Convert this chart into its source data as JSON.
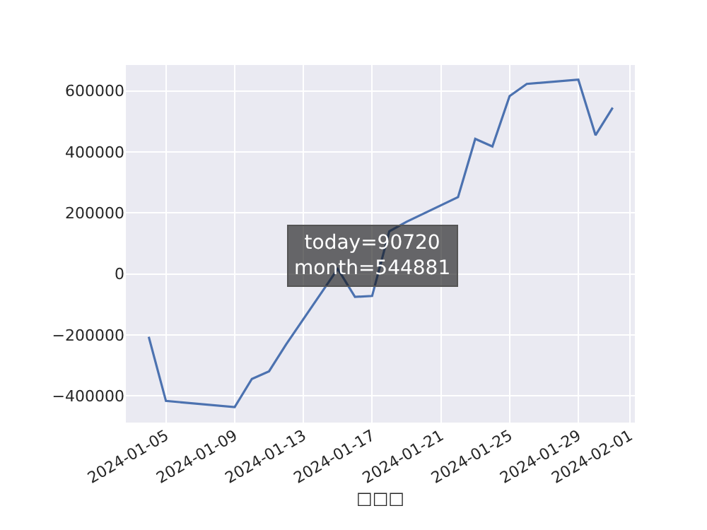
{
  "chart_data": {
    "type": "line",
    "xlabel": "□□□",
    "x": [
      "2024-01-04",
      "2024-01-05",
      "2024-01-09",
      "2024-01-10",
      "2024-01-11",
      "2024-01-12",
      "2024-01-15",
      "2024-01-16",
      "2024-01-17",
      "2024-01-18",
      "2024-01-19",
      "2024-01-22",
      "2024-01-23",
      "2024-01-24",
      "2024-01-25",
      "2024-01-26",
      "2024-01-29",
      "2024-01-30",
      "2024-01-31"
    ],
    "series": [
      {
        "color": "#4c72b0",
        "values": [
          -206000,
          -416000,
          -436000,
          -344000,
          -319000,
          -230000,
          17000,
          -75000,
          -72000,
          140000,
          171000,
          252000,
          443000,
          418000,
          583000,
          623000,
          637000,
          455000,
          545000
        ]
      }
    ],
    "xlim": [
      "2024-01-02T16:00",
      "2024-02-01T07:00"
    ],
    "xticks": [
      "2024-01-05",
      "2024-01-09",
      "2024-01-13",
      "2024-01-17",
      "2024-01-21",
      "2024-01-25",
      "2024-01-29",
      "2024-02-01"
    ],
    "ylim": [
      -487000,
      685000
    ],
    "yticks": [
      {
        "value": -400000,
        "label": "−400000"
      },
      {
        "value": -200000,
        "label": "−200000"
      },
      0,
      200000,
      400000,
      600000
    ],
    "grid": true,
    "line_style": "solid",
    "marker": "none",
    "annotations": [
      "today=90720\nmonth=544881"
    ]
  }
}
